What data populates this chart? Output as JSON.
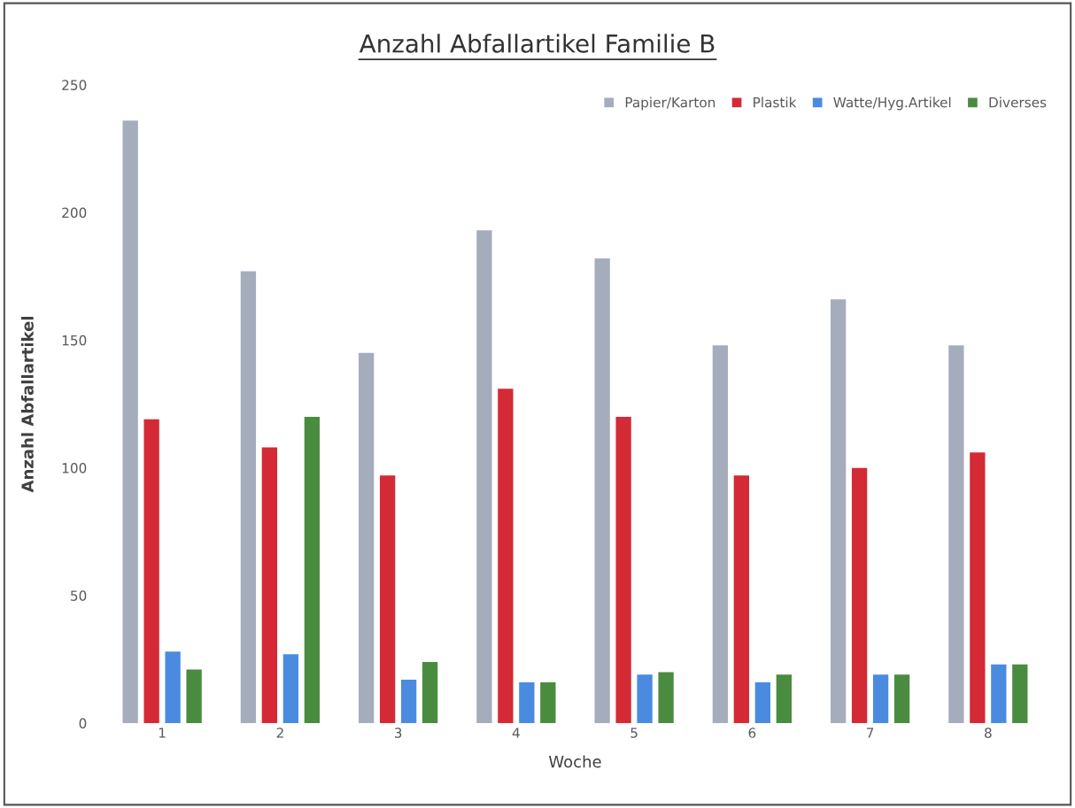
{
  "chart_data": {
    "type": "bar",
    "title": "Anzahl Abfallartikel Familie B",
    "xlabel": "Woche",
    "ylabel": "Anzahl Abfallartikel",
    "categories": [
      "1",
      "2",
      "3",
      "4",
      "5",
      "6",
      "7",
      "8"
    ],
    "series": [
      {
        "name": "Papier/Karton",
        "color": "#a5adbd",
        "values": [
          236,
          177,
          145,
          193,
          182,
          148,
          166,
          148
        ]
      },
      {
        "name": "Plastik",
        "color": "#d42a35",
        "values": [
          119,
          108,
          97,
          131,
          120,
          97,
          100,
          106
        ]
      },
      {
        "name": "Watte/Hyg.Artikel",
        "color": "#4a8be0",
        "values": [
          28,
          27,
          17,
          16,
          19,
          16,
          19,
          23
        ]
      },
      {
        "name": "Diverses",
        "color": "#4a8c3f",
        "values": [
          21,
          120,
          24,
          16,
          20,
          19,
          19,
          23
        ]
      }
    ],
    "ylim": [
      0,
      250
    ],
    "yticks": [
      0,
      50,
      100,
      150,
      200,
      250
    ],
    "grid": false,
    "legend": "top right"
  }
}
